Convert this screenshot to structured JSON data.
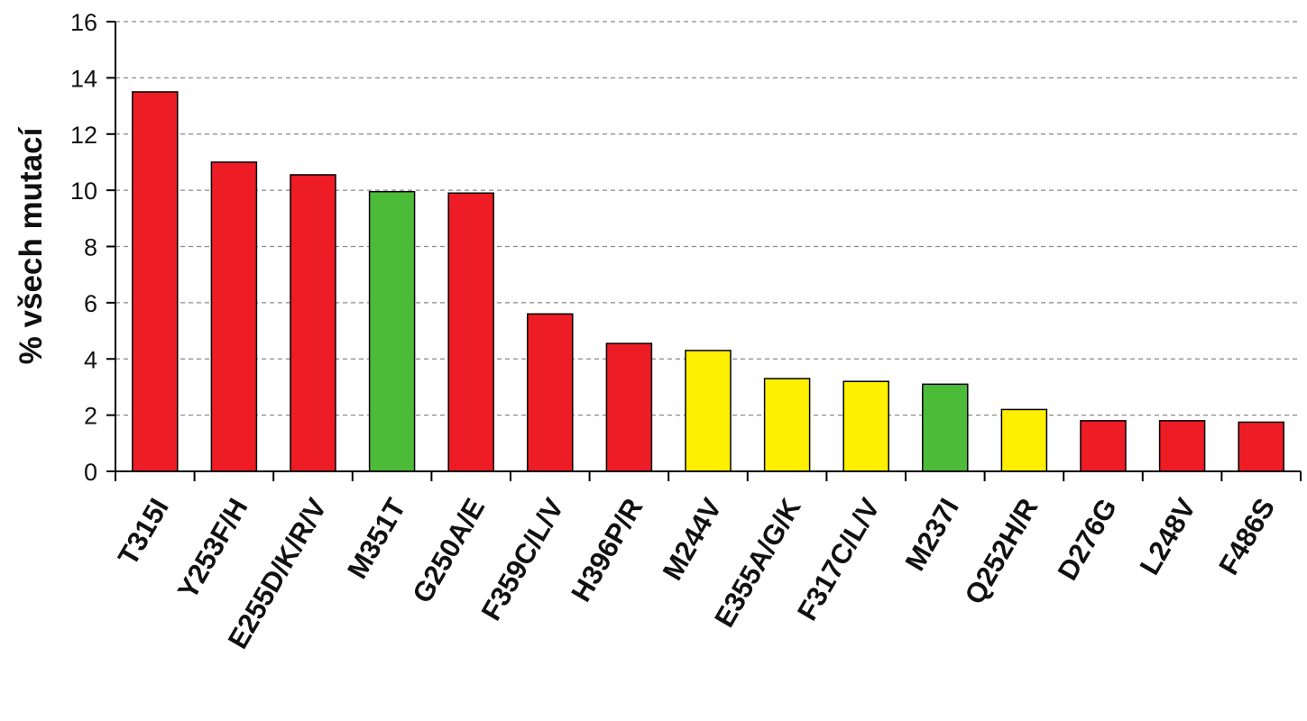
{
  "chart_data": {
    "type": "bar",
    "title": "",
    "xlabel": "",
    "ylabel": "% všech mutací",
    "ylim": [
      0,
      16
    ],
    "yticks": [
      0,
      2,
      4,
      6,
      8,
      10,
      12,
      14,
      16
    ],
    "grid": true,
    "legend": "none",
    "categories": [
      "T315I",
      "Y253F/H",
      "E255D/K/R/V",
      "M351T",
      "G250A/E",
      "F359C/L/V",
      "H396P/R",
      "M244V",
      "E355A/G/K",
      "F317C/L/V",
      "M237I",
      "Q252H/R",
      "D276G",
      "L248V",
      "F486S"
    ],
    "values": [
      13.5,
      11.0,
      10.55,
      9.95,
      9.9,
      5.6,
      4.55,
      4.3,
      3.3,
      3.2,
      3.1,
      2.2,
      1.8,
      1.8,
      1.75
    ],
    "bar_colors": [
      "#ee1c25",
      "#ee1c25",
      "#ee1c25",
      "#4cbb38",
      "#ee1c25",
      "#ee1c25",
      "#ee1c25",
      "#ffef00",
      "#ffef00",
      "#ffef00",
      "#4cbb38",
      "#ffef00",
      "#ee1c25",
      "#ee1c25",
      "#ee1c25"
    ]
  }
}
